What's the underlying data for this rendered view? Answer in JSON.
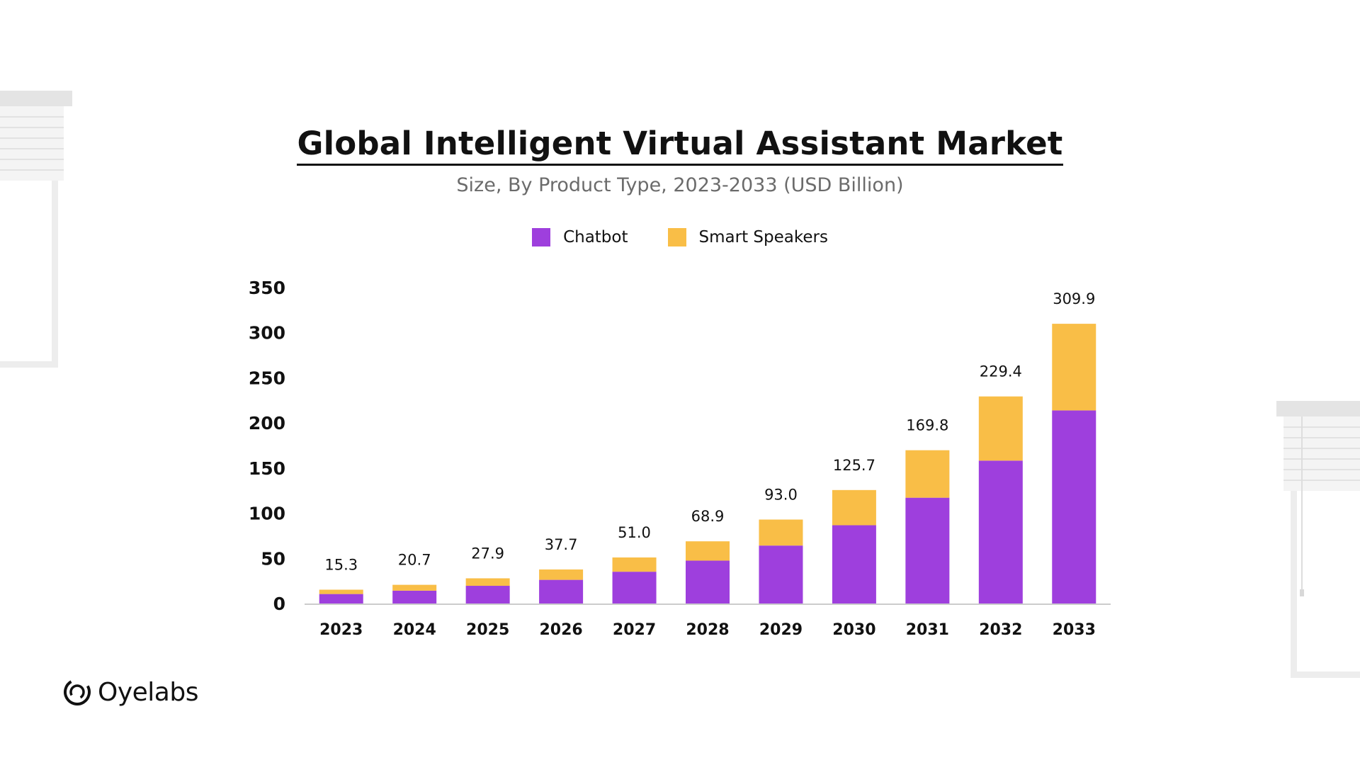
{
  "chart_data": {
    "type": "bar",
    "stacked": true,
    "title": "Global Intelligent Virtual Assistant Market",
    "subtitle": "Size, By Product Type, 2023-2033 (USD Billion)",
    "categories": [
      "2023",
      "2024",
      "2025",
      "2026",
      "2027",
      "2028",
      "2029",
      "2030",
      "2031",
      "2032",
      "2033"
    ],
    "series": [
      {
        "name": "Chatbot",
        "color": "#9E3FDD",
        "values": [
          10.5,
          14.2,
          19.6,
          26.2,
          35.2,
          47.5,
          64.2,
          86.7,
          117.2,
          158.3,
          213.9
        ]
      },
      {
        "name": "Smart Speakers",
        "color": "#F9BE47",
        "values": [
          4.8,
          6.5,
          8.3,
          11.5,
          15.8,
          21.4,
          28.8,
          39.0,
          52.6,
          71.1,
          96.0
        ]
      }
    ],
    "totals": [
      "15.3",
      "20.7",
      "27.9",
      "37.7",
      "51.0",
      "68.9",
      "93.0",
      "125.7",
      "169.8",
      "229.4",
      "309.9"
    ],
    "yticks": [
      "0",
      "50",
      "100",
      "150",
      "200",
      "250",
      "300",
      "350"
    ],
    "ylim": [
      0,
      350
    ],
    "legend_position": "top-center",
    "grid": false
  },
  "brand": {
    "name": "Oyelabs"
  }
}
